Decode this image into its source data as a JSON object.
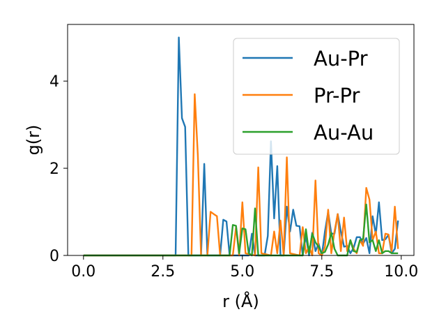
{
  "chart_data": {
    "type": "line",
    "xlabel": "r (Å)",
    "ylabel": "g(r)",
    "xlim": [
      -0.5,
      10.4
    ],
    "ylim": [
      0,
      5.3
    ],
    "xticks": [
      0.0,
      2.5,
      5.0,
      7.5,
      10.0
    ],
    "xtick_labels": [
      "0.0",
      "2.5",
      "5.0",
      "7.5",
      "10.0"
    ],
    "yticks": [
      0,
      2,
      4
    ],
    "ytick_labels": [
      "0",
      "2",
      "4"
    ],
    "grid": false,
    "legend_position": "top-right",
    "series": [
      {
        "name": "Au-Pr",
        "color": "#1f77b4",
        "points": [
          [
            0,
            0
          ],
          [
            2.9,
            0
          ],
          [
            3.0,
            5.0
          ],
          [
            3.1,
            3.15
          ],
          [
            3.2,
            2.95
          ],
          [
            3.3,
            0
          ],
          [
            3.7,
            0
          ],
          [
            3.8,
            2.1
          ],
          [
            3.9,
            0
          ],
          [
            4.3,
            0
          ],
          [
            4.4,
            0.82
          ],
          [
            4.5,
            0.78
          ],
          [
            4.6,
            0
          ],
          [
            5.2,
            0
          ],
          [
            5.3,
            0.5
          ],
          [
            5.4,
            0
          ],
          [
            5.7,
            0
          ],
          [
            5.8,
            0.45
          ],
          [
            5.9,
            2.62
          ],
          [
            6.0,
            0.85
          ],
          [
            6.1,
            2.05
          ],
          [
            6.2,
            0
          ],
          [
            6.3,
            0
          ],
          [
            6.4,
            1.12
          ],
          [
            6.5,
            0.55
          ],
          [
            6.6,
            1.05
          ],
          [
            6.7,
            0.68
          ],
          [
            6.8,
            0.67
          ],
          [
            6.9,
            0
          ],
          [
            7.0,
            0.45
          ],
          [
            7.1,
            0
          ],
          [
            7.2,
            0.52
          ],
          [
            7.3,
            0.1
          ],
          [
            7.4,
            0.27
          ],
          [
            7.5,
            0
          ],
          [
            7.6,
            0.55
          ],
          [
            7.7,
            1.0
          ],
          [
            7.8,
            0.5
          ],
          [
            7.9,
            0.5
          ],
          [
            8.0,
            0.95
          ],
          [
            8.1,
            0.55
          ],
          [
            8.2,
            0.2
          ],
          [
            8.3,
            0.22
          ],
          [
            8.4,
            0.05
          ],
          [
            8.5,
            0.17
          ],
          [
            8.6,
            0.42
          ],
          [
            8.7,
            0.42
          ],
          [
            8.8,
            0.27
          ],
          [
            8.9,
            0.4
          ],
          [
            9.0,
            0.05
          ],
          [
            9.1,
            0.9
          ],
          [
            9.2,
            0.48
          ],
          [
            9.3,
            1.22
          ],
          [
            9.4,
            0.35
          ],
          [
            9.5,
            0.37
          ],
          [
            9.6,
            0.47
          ],
          [
            9.7,
            0.05
          ],
          [
            9.8,
            0.15
          ],
          [
            9.9,
            0.8
          ]
        ]
      },
      {
        "name": "Pr-Pr",
        "color": "#ff7f0e",
        "points": [
          [
            0,
            0
          ],
          [
            3.4,
            0
          ],
          [
            3.5,
            3.7
          ],
          [
            3.6,
            2.3
          ],
          [
            3.7,
            0
          ],
          [
            3.9,
            0
          ],
          [
            4.0,
            1.0
          ],
          [
            4.1,
            0.95
          ],
          [
            4.2,
            0.9
          ],
          [
            4.3,
            0
          ],
          [
            4.7,
            0
          ],
          [
            4.8,
            0.65
          ],
          [
            4.9,
            0
          ],
          [
            5.0,
            1.22
          ],
          [
            5.1,
            0.05
          ],
          [
            5.4,
            0
          ],
          [
            5.5,
            2.02
          ],
          [
            5.6,
            0.05
          ],
          [
            5.9,
            0
          ],
          [
            6.0,
            0.55
          ],
          [
            6.1,
            0.05
          ],
          [
            6.2,
            0.8
          ],
          [
            6.3,
            0
          ],
          [
            6.4,
            2.25
          ],
          [
            6.5,
            0.05
          ],
          [
            6.8,
            0
          ],
          [
            6.9,
            0.65
          ],
          [
            7.0,
            0.05
          ],
          [
            7.1,
            0.2
          ],
          [
            7.2,
            0
          ],
          [
            7.3,
            1.72
          ],
          [
            7.4,
            0.05
          ],
          [
            7.5,
            0
          ],
          [
            7.6,
            0.2
          ],
          [
            7.7,
            1.05
          ],
          [
            7.8,
            0.05
          ],
          [
            7.9,
            0.55
          ],
          [
            8.0,
            0.95
          ],
          [
            8.1,
            0.1
          ],
          [
            8.2,
            0.87
          ],
          [
            8.3,
            0.1
          ],
          [
            8.4,
            0.35
          ],
          [
            8.5,
            0.15
          ],
          [
            8.6,
            0.05
          ],
          [
            8.7,
            0.35
          ],
          [
            8.8,
            0.22
          ],
          [
            8.9,
            1.55
          ],
          [
            9.0,
            1.28
          ],
          [
            9.1,
            0.35
          ],
          [
            9.2,
            0.55
          ],
          [
            9.3,
            0.05
          ],
          [
            9.4,
            0.05
          ],
          [
            9.5,
            0.5
          ],
          [
            9.6,
            0.48
          ],
          [
            9.7,
            0.1
          ],
          [
            9.8,
            1.12
          ],
          [
            9.9,
            0.15
          ]
        ]
      },
      {
        "name": "Au-Au",
        "color": "#2ca02c",
        "points": [
          [
            0,
            0
          ],
          [
            4.6,
            0
          ],
          [
            4.7,
            0.7
          ],
          [
            4.8,
            0.68
          ],
          [
            4.9,
            0.05
          ],
          [
            5.0,
            0.62
          ],
          [
            5.1,
            0.6
          ],
          [
            5.2,
            0.05
          ],
          [
            5.3,
            0
          ],
          [
            5.4,
            1.08
          ],
          [
            5.5,
            0
          ],
          [
            6.9,
            0
          ],
          [
            7.0,
            0.6
          ],
          [
            7.1,
            0.05
          ],
          [
            7.2,
            0.5
          ],
          [
            7.3,
            0.3
          ],
          [
            7.4,
            0.2
          ],
          [
            7.5,
            0.05
          ],
          [
            7.6,
            0.08
          ],
          [
            7.7,
            0.25
          ],
          [
            7.8,
            0.52
          ],
          [
            7.9,
            0.15
          ],
          [
            8.0,
            0
          ],
          [
            8.3,
            0
          ],
          [
            8.4,
            0.35
          ],
          [
            8.5,
            0.1
          ],
          [
            8.6,
            0.08
          ],
          [
            8.7,
            0.35
          ],
          [
            8.8,
            0.38
          ],
          [
            8.9,
            1.17
          ],
          [
            9.0,
            0.3
          ],
          [
            9.1,
            0.35
          ],
          [
            9.2,
            0.1
          ],
          [
            9.3,
            0.35
          ],
          [
            9.4,
            0.05
          ],
          [
            9.5,
            0.1
          ],
          [
            9.6,
            0.1
          ],
          [
            9.7,
            0.05
          ],
          [
            9.8,
            0.05
          ],
          [
            9.9,
            0.05
          ]
        ]
      }
    ]
  }
}
